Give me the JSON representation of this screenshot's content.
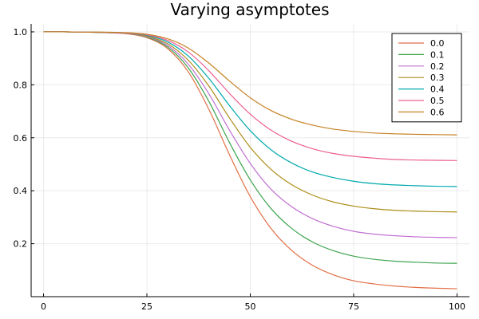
{
  "chart_data": {
    "type": "line",
    "title": "Varying asymptotes",
    "xlabel": "",
    "ylabel": "",
    "xlim": [
      -3,
      103
    ],
    "ylim": [
      0,
      1.03
    ],
    "xticks": [
      0,
      25,
      50,
      75,
      100
    ],
    "xtick_labels": [
      "0",
      "25",
      "50",
      "75",
      "100"
    ],
    "yticks": [
      0.2,
      0.4,
      0.6,
      0.8,
      1.0
    ],
    "ytick_labels": [
      "0.2",
      "0.4",
      "0.6",
      "0.8",
      "1.0"
    ],
    "grid": true,
    "legend_position": "top-right",
    "x": [
      0,
      5,
      10,
      15,
      20,
      25,
      30,
      35,
      40,
      45,
      50,
      55,
      60,
      65,
      70,
      75,
      80,
      85,
      90,
      95,
      100
    ],
    "series": [
      {
        "name": "0.0",
        "color": "#e26f46",
        "values": [
          1.0,
          1.0,
          0.999,
          0.997,
          0.993,
          0.978,
          0.937,
          0.849,
          0.707,
          0.535,
          0.378,
          0.258,
          0.175,
          0.119,
          0.083,
          0.06,
          0.048,
          0.04,
          0.035,
          0.032,
          0.03
        ]
      },
      {
        "name": "0.1",
        "color": "#3da44e",
        "values": [
          1.0,
          1.0,
          0.999,
          0.997,
          0.994,
          0.98,
          0.943,
          0.864,
          0.737,
          0.581,
          0.441,
          0.333,
          0.258,
          0.207,
          0.174,
          0.153,
          0.141,
          0.134,
          0.13,
          0.127,
          0.126
        ]
      },
      {
        "name": "0.2",
        "color": "#c271d2",
        "values": [
          1.0,
          1.0,
          0.999,
          0.998,
          0.994,
          0.982,
          0.949,
          0.878,
          0.766,
          0.628,
          0.503,
          0.406,
          0.34,
          0.295,
          0.266,
          0.247,
          0.236,
          0.23,
          0.226,
          0.224,
          0.223
        ]
      },
      {
        "name": "0.3",
        "color": "#ac8d18",
        "values": [
          1.0,
          1.0,
          0.999,
          0.998,
          0.995,
          0.984,
          0.955,
          0.893,
          0.795,
          0.674,
          0.564,
          0.481,
          0.423,
          0.384,
          0.358,
          0.342,
          0.332,
          0.326,
          0.323,
          0.321,
          0.32
        ]
      },
      {
        "name": "0.4",
        "color": "#00a9ad",
        "values": [
          1.0,
          1.0,
          0.999,
          0.998,
          0.996,
          0.987,
          0.962,
          0.909,
          0.824,
          0.721,
          0.627,
          0.555,
          0.505,
          0.471,
          0.45,
          0.436,
          0.427,
          0.422,
          0.419,
          0.417,
          0.416
        ]
      },
      {
        "name": "0.5",
        "color": "#ed5e93",
        "values": [
          1.0,
          1.0,
          0.999,
          0.998,
          0.996,
          0.989,
          0.968,
          0.924,
          0.853,
          0.767,
          0.689,
          0.629,
          0.587,
          0.559,
          0.541,
          0.53,
          0.523,
          0.518,
          0.516,
          0.515,
          0.514
        ]
      },
      {
        "name": "0.6",
        "color": "#c68125",
        "values": [
          1.0,
          1.0,
          0.999,
          0.999,
          0.997,
          0.991,
          0.974,
          0.939,
          0.882,
          0.814,
          0.751,
          0.703,
          0.67,
          0.648,
          0.633,
          0.624,
          0.618,
          0.615,
          0.613,
          0.612,
          0.611
        ]
      }
    ]
  }
}
